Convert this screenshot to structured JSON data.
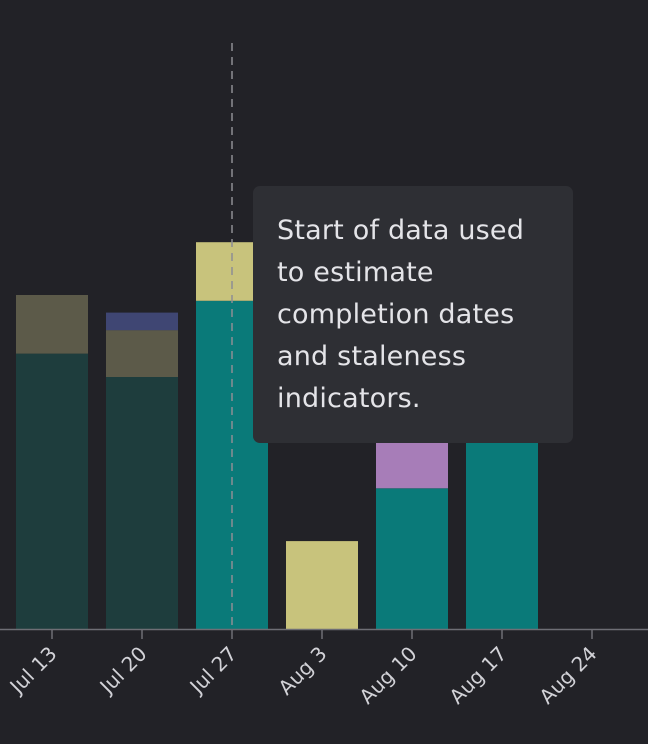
{
  "chart_data": {
    "type": "bar",
    "stacked": true,
    "categories": [
      "Jul 13",
      "Jul 20",
      "Jul 27",
      "Aug 3",
      "Aug 10",
      "Aug 17",
      "Aug 24"
    ],
    "ylim": [
      0,
      10
    ],
    "grid": false,
    "title": "",
    "xlabel": "",
    "ylabel": "",
    "series": [
      {
        "color": "#0a7a79",
        "muted_color": "#1e3d3d",
        "values": [
          4.7,
          4.3,
          5.6,
          0,
          2.4,
          4.6,
          0
        ]
      },
      {
        "color": "#a77db8",
        "muted_color": "#4d3f5a",
        "values": [
          0,
          0,
          0,
          0,
          2.4,
          0,
          0
        ]
      },
      {
        "color": "#c8c37c",
        "muted_color": "#5c5a49",
        "values": [
          1.0,
          0.8,
          1.0,
          1.5,
          1.1,
          0,
          0
        ]
      },
      {
        "color": "#5b6aa3",
        "muted_color": "#3f4673",
        "values": [
          0,
          0.3,
          0,
          0,
          0,
          0,
          0
        ]
      }
    ],
    "muted_categories": [
      "Jul 13",
      "Jul 20"
    ],
    "marker": {
      "position": "Jul 27",
      "style": "dashed"
    },
    "tooltip": {
      "lines": [
        "Start of data used",
        "to estimate",
        "completion dates",
        "and staleness",
        "indicators."
      ]
    }
  }
}
